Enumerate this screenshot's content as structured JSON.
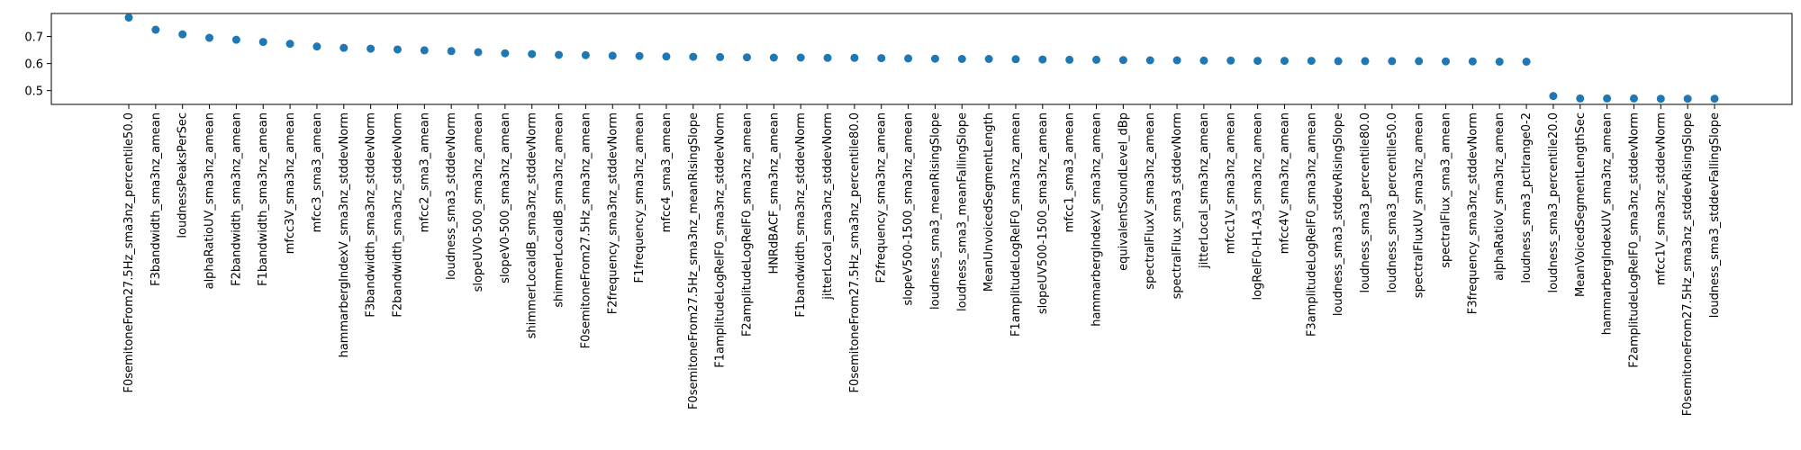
{
  "chart_data": {
    "type": "scatter",
    "title": "",
    "xlabel": "",
    "ylabel": "",
    "ylim": [
      0.449,
      0.785
    ],
    "yticks": [
      0.5,
      0.6,
      0.7
    ],
    "grid": false,
    "marker_color": "#1f77b4",
    "categories": [
      "F0semitoneFrom27.5Hz_sma3nz_percentile50.0",
      "F3bandwidth_sma3nz_amean",
      "loudnessPeaksPerSec",
      "alphaRatioUV_sma3nz_amean",
      "F2bandwidth_sma3nz_amean",
      "F1bandwidth_sma3nz_amean",
      "mfcc3V_sma3nz_amean",
      "mfcc3_sma3_amean",
      "hammarbergIndexV_sma3nz_stddevNorm",
      "F3bandwidth_sma3nz_stddevNorm",
      "F2bandwidth_sma3nz_stddevNorm",
      "mfcc2_sma3_amean",
      "loudness_sma3_stddevNorm",
      "slopeUV0-500_sma3nz_amean",
      "slopeV0-500_sma3nz_amean",
      "shimmerLocaldB_sma3nz_stddevNorm",
      "shimmerLocaldB_sma3nz_amean",
      "F0semitoneFrom27.5Hz_sma3nz_amean",
      "F2frequency_sma3nz_stddevNorm",
      "F1frequency_sma3nz_amean",
      "mfcc4_sma3_amean",
      "F0semitoneFrom27.5Hz_sma3nz_meanRisingSlope",
      "F1amplitudeLogRelF0_sma3nz_stddevNorm",
      "F2amplitudeLogRelF0_sma3nz_amean",
      "HNRdBACF_sma3nz_amean",
      "F1bandwidth_sma3nz_stddevNorm",
      "jitterLocal_sma3nz_stddevNorm",
      "F0semitoneFrom27.5Hz_sma3nz_percentile80.0",
      "F2frequency_sma3nz_amean",
      "slopeV500-1500_sma3nz_amean",
      "loudness_sma3_meanRisingSlope",
      "loudness_sma3_meanFallingSlope",
      "MeanUnvoicedSegmentLength",
      "F1amplitudeLogRelF0_sma3nz_amean",
      "slopeUV500-1500_sma3nz_amean",
      "mfcc1_sma3_amean",
      "hammarbergIndexV_sma3nz_amean",
      "equivalentSoundLevel_dBp",
      "spectralFluxV_sma3nz_amean",
      "spectralFlux_sma3_stddevNorm",
      "jitterLocal_sma3nz_amean",
      "mfcc1V_sma3nz_amean",
      "logRelF0-H1-A3_sma3nz_amean",
      "mfcc4V_sma3nz_amean",
      "F3amplitudeLogRelF0_sma3nz_amean",
      "loudness_sma3_stddevRisingSlope",
      "loudness_sma3_percentile80.0",
      "loudness_sma3_percentile50.0",
      "spectralFluxUV_sma3nz_amean",
      "spectralFlux_sma3_amean",
      "F3frequency_sma3nz_stddevNorm",
      "alphaRatioV_sma3nz_amean",
      "loudness_sma3_pctlrange0-2",
      "loudness_sma3_percentile20.0",
      "MeanVoicedSegmentLengthSec",
      "hammarbergIndexUV_sma3nz_amean",
      "F2amplitudeLogRelF0_sma3nz_stddevNorm",
      "mfcc1V_sma3nz_stddevNorm",
      "F0semitoneFrom27.5Hz_sma3nz_stddevRisingSlope",
      "loudness_sma3_stddevFallingSlope"
    ],
    "values": [
      0.77,
      0.725,
      0.708,
      0.695,
      0.688,
      0.68,
      0.673,
      0.663,
      0.658,
      0.655,
      0.652,
      0.649,
      0.646,
      0.642,
      0.638,
      0.635,
      0.632,
      0.631,
      0.629,
      0.628,
      0.626,
      0.625,
      0.624,
      0.623,
      0.622,
      0.622,
      0.621,
      0.621,
      0.62,
      0.619,
      0.618,
      0.617,
      0.617,
      0.616,
      0.615,
      0.614,
      0.614,
      0.613,
      0.612,
      0.612,
      0.611,
      0.611,
      0.61,
      0.61,
      0.61,
      0.609,
      0.609,
      0.609,
      0.609,
      0.608,
      0.608,
      0.607,
      0.607,
      0.48,
      0.471,
      0.471,
      0.471,
      0.47,
      0.47,
      0.47
    ]
  }
}
